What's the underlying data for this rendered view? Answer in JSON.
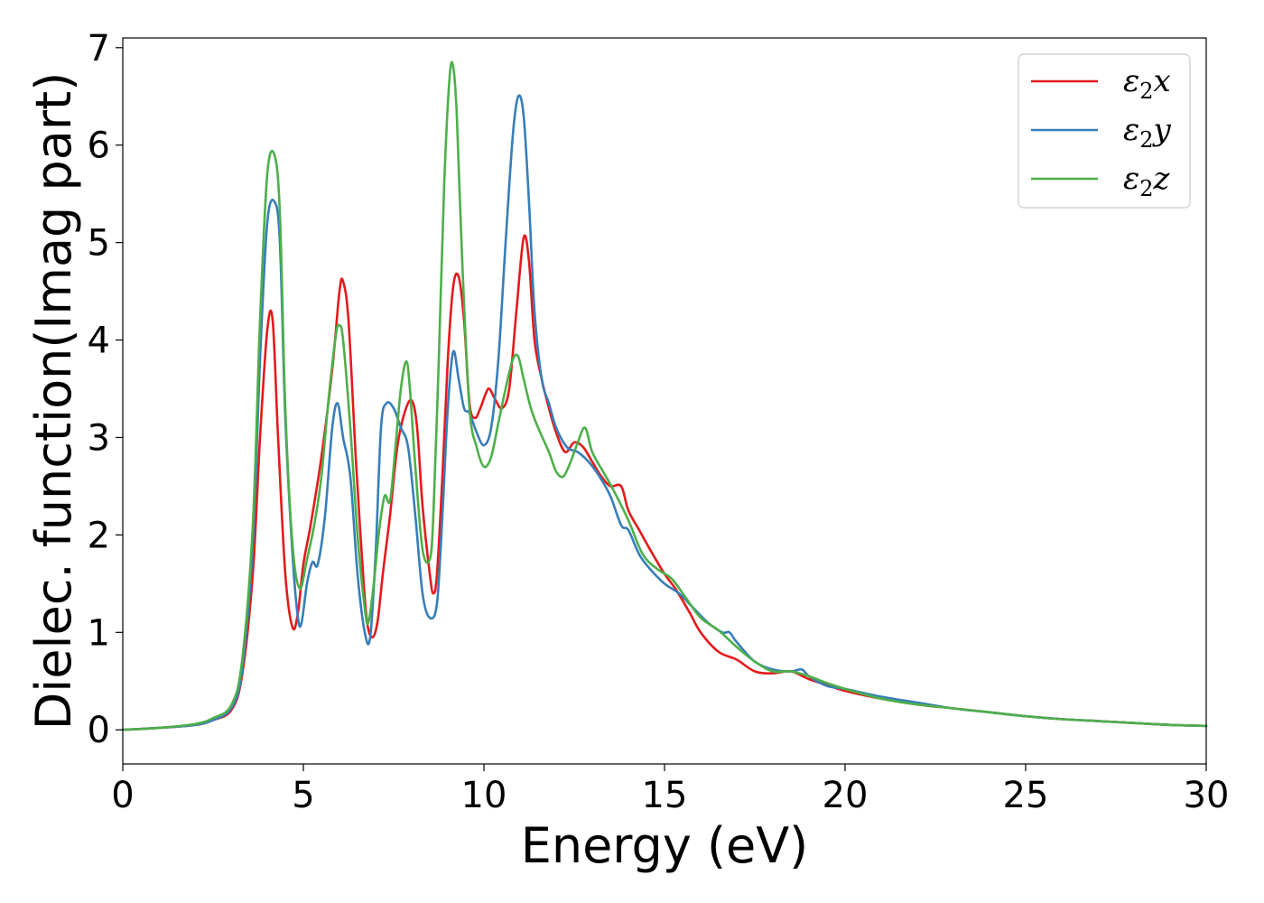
{
  "chart_data": {
    "type": "line",
    "xlabel": "Energy (eV)",
    "ylabel": "Dielec. function(Imag part)",
    "xlim": [
      0,
      30
    ],
    "ylim": [
      -0.35,
      7.1
    ],
    "xticks": [
      0,
      5,
      10,
      15,
      20,
      25,
      30
    ],
    "yticks": [
      0,
      1,
      2,
      3,
      4,
      5,
      6,
      7
    ],
    "grid": false,
    "legend_position": "top-right",
    "series": [
      {
        "name": "ε2x",
        "legend": {
          "symbol": "ε",
          "sub": "2",
          "axis": "x"
        },
        "color": "#e41a1c",
        "x": [
          0,
          1,
          2,
          2.5,
          3,
          3.3,
          3.6,
          3.8,
          4.0,
          4.15,
          4.3,
          4.5,
          4.7,
          4.85,
          5.0,
          5.2,
          5.5,
          5.8,
          6.0,
          6.1,
          6.25,
          6.45,
          6.6,
          6.75,
          6.9,
          7.05,
          7.2,
          7.4,
          7.6,
          7.8,
          8.0,
          8.15,
          8.3,
          8.5,
          8.6,
          8.7,
          8.85,
          9.0,
          9.15,
          9.3,
          9.45,
          9.6,
          9.75,
          9.9,
          10.05,
          10.15,
          10.3,
          10.5,
          10.7,
          10.9,
          11.1,
          11.25,
          11.4,
          11.6,
          11.8,
          12.0,
          12.25,
          12.5,
          12.75,
          13.0,
          13.25,
          13.5,
          13.8,
          14.0,
          14.3,
          14.6,
          15.0,
          15.3,
          15.7,
          16.0,
          16.5,
          17.0,
          17.5,
          18.0,
          18.5,
          19.0,
          19.5,
          20.0,
          21.0,
          22.0,
          23.0,
          24.0,
          25.0,
          26.0,
          27.0,
          28.0,
          29.0,
          30.0
        ],
        "values": [
          0,
          0.02,
          0.05,
          0.1,
          0.2,
          0.55,
          1.6,
          3.0,
          4.1,
          4.2,
          3.0,
          1.6,
          1.05,
          1.2,
          1.7,
          2.1,
          2.8,
          3.7,
          4.5,
          4.6,
          4.2,
          2.8,
          1.9,
          1.15,
          0.95,
          1.1,
          1.6,
          2.2,
          2.9,
          3.25,
          3.38,
          3.1,
          2.3,
          1.6,
          1.4,
          1.6,
          2.6,
          3.8,
          4.55,
          4.65,
          4.2,
          3.35,
          3.2,
          3.3,
          3.45,
          3.5,
          3.4,
          3.3,
          3.5,
          4.3,
          5.05,
          4.8,
          4.0,
          3.6,
          3.3,
          3.05,
          2.85,
          2.95,
          2.9,
          2.75,
          2.6,
          2.5,
          2.5,
          2.25,
          2.05,
          1.85,
          1.6,
          1.45,
          1.2,
          1.0,
          0.8,
          0.72,
          0.6,
          0.58,
          0.6,
          0.52,
          0.46,
          0.4,
          0.32,
          0.26,
          0.22,
          0.18,
          0.14,
          0.11,
          0.09,
          0.07,
          0.05,
          0.04
        ]
      },
      {
        "name": "ε2y",
        "legend": {
          "symbol": "ε",
          "sub": "2",
          "axis": "y"
        },
        "color": "#377eb8",
        "x": [
          0,
          1,
          2,
          2.5,
          3,
          3.3,
          3.6,
          3.8,
          4.0,
          4.2,
          4.35,
          4.5,
          4.7,
          4.85,
          4.95,
          5.1,
          5.25,
          5.4,
          5.6,
          5.8,
          5.95,
          6.1,
          6.3,
          6.5,
          6.7,
          6.85,
          7.0,
          7.15,
          7.3,
          7.5,
          7.7,
          7.9,
          8.1,
          8.3,
          8.5,
          8.7,
          8.85,
          9.0,
          9.15,
          9.3,
          9.45,
          9.6,
          9.8,
          10.0,
          10.2,
          10.4,
          10.6,
          10.8,
          10.95,
          11.1,
          11.25,
          11.4,
          11.6,
          11.8,
          12.0,
          12.3,
          12.6,
          12.9,
          13.2,
          13.5,
          13.8,
          14.0,
          14.3,
          14.6,
          15.0,
          15.4,
          15.8,
          16.2,
          16.6,
          16.8,
          17.0,
          17.5,
          18.0,
          18.5,
          18.8,
          19.0,
          19.5,
          20.0,
          21.0,
          22.0,
          23.0,
          24.0,
          25.0,
          26.0,
          27.0,
          28.0,
          29.0,
          30.0
        ],
        "values": [
          0,
          0.02,
          0.05,
          0.1,
          0.22,
          0.6,
          1.9,
          3.8,
          5.2,
          5.42,
          5.0,
          3.2,
          1.8,
          1.15,
          1.1,
          1.5,
          1.72,
          1.7,
          2.2,
          3.1,
          3.35,
          3.0,
          2.6,
          1.6,
          1.0,
          0.95,
          1.8,
          3.1,
          3.35,
          3.3,
          3.1,
          2.9,
          2.2,
          1.4,
          1.15,
          1.3,
          2.2,
          3.3,
          3.88,
          3.6,
          3.3,
          3.25,
          3.05,
          2.92,
          3.1,
          3.8,
          5.0,
          6.1,
          6.5,
          6.3,
          5.4,
          4.3,
          3.6,
          3.35,
          3.1,
          2.9,
          2.85,
          2.75,
          2.6,
          2.4,
          2.1,
          2.05,
          1.8,
          1.65,
          1.5,
          1.4,
          1.25,
          1.1,
          1.0,
          1.0,
          0.9,
          0.7,
          0.62,
          0.6,
          0.62,
          0.55,
          0.45,
          0.42,
          0.34,
          0.28,
          0.22,
          0.18,
          0.14,
          0.11,
          0.09,
          0.07,
          0.05,
          0.04
        ]
      },
      {
        "name": "ε2z",
        "legend": {
          "symbol": "ε",
          "sub": "2",
          "axis": "z"
        },
        "color": "#4daf4a",
        "x": [
          0,
          1,
          2,
          2.5,
          3,
          3.3,
          3.6,
          3.8,
          4.0,
          4.2,
          4.35,
          4.5,
          4.7,
          4.9,
          5.1,
          5.3,
          5.5,
          5.7,
          5.9,
          6.0,
          6.1,
          6.3,
          6.5,
          6.7,
          6.8,
          6.95,
          7.1,
          7.25,
          7.4,
          7.55,
          7.7,
          7.85,
          7.95,
          8.1,
          8.3,
          8.5,
          8.6,
          8.75,
          8.9,
          9.05,
          9.15,
          9.25,
          9.4,
          9.6,
          9.8,
          10.0,
          10.2,
          10.4,
          10.6,
          10.8,
          10.95,
          11.1,
          11.3,
          11.5,
          11.8,
          12.0,
          12.2,
          12.4,
          12.6,
          12.8,
          13.0,
          13.3,
          13.6,
          14.0,
          14.4,
          14.8,
          15.2,
          15.6,
          16.0,
          16.5,
          17.0,
          17.5,
          18.0,
          18.5,
          19.0,
          19.5,
          20.0,
          21.0,
          22.0,
          23.0,
          24.0,
          25.0,
          26.0,
          27.0,
          28.0,
          29.0,
          30.0
        ],
        "values": [
          0,
          0.02,
          0.06,
          0.12,
          0.25,
          0.7,
          2.1,
          4.2,
          5.7,
          5.9,
          5.3,
          3.3,
          1.9,
          1.45,
          1.75,
          2.1,
          2.6,
          3.4,
          4.05,
          4.15,
          4.0,
          3.1,
          2.0,
          1.25,
          1.1,
          1.5,
          2.05,
          2.4,
          2.35,
          2.9,
          3.5,
          3.78,
          3.5,
          2.7,
          1.85,
          1.75,
          2.2,
          3.8,
          5.6,
          6.7,
          6.8,
          6.3,
          4.8,
          3.3,
          2.9,
          2.7,
          2.8,
          3.15,
          3.5,
          3.8,
          3.83,
          3.6,
          3.3,
          3.1,
          2.85,
          2.65,
          2.6,
          2.75,
          2.95,
          3.1,
          2.85,
          2.65,
          2.45,
          2.15,
          1.8,
          1.65,
          1.55,
          1.35,
          1.15,
          1.02,
          0.85,
          0.7,
          0.6,
          0.6,
          0.55,
          0.48,
          0.42,
          0.32,
          0.26,
          0.22,
          0.18,
          0.14,
          0.11,
          0.09,
          0.07,
          0.05,
          0.04
        ]
      }
    ]
  }
}
